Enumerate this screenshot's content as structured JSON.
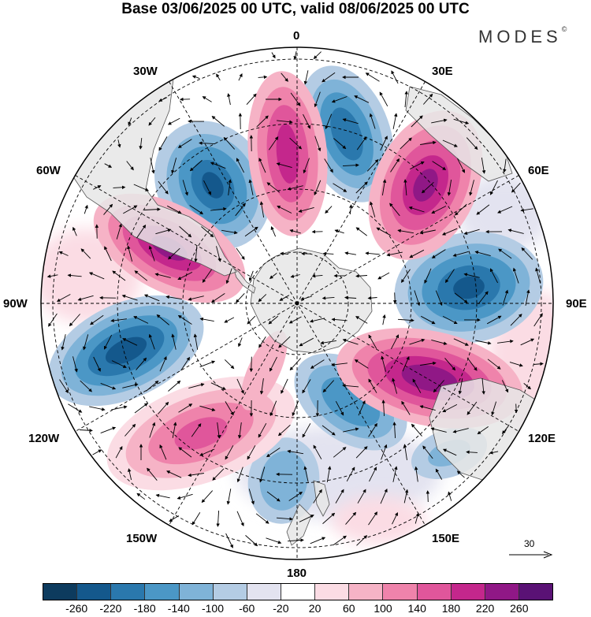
{
  "title": "Base 03/06/2025 00 UTC, valid 08/06/2025 00 UTC",
  "brand": {
    "name": "MODES",
    "mark": "©"
  },
  "longitude_labels": {
    "top": "0",
    "e30": "30E",
    "e60": "60E",
    "e90": "90E",
    "e120": "120E",
    "e150": "150E",
    "bottom": "180",
    "w150": "150W",
    "w120": "120W",
    "w90": "90W",
    "w60": "60W",
    "w30": "30W"
  },
  "reference_vector": {
    "value": "30"
  },
  "colorbar": {
    "ticks": [
      "-260",
      "-220",
      "-180",
      "-140",
      "-100",
      "-60",
      "-20",
      "20",
      "60",
      "100",
      "140",
      "180",
      "220",
      "260"
    ],
    "colors": [
      "#0d3b5e",
      "#14588c",
      "#2a78ad",
      "#4b97c6",
      "#7fb3d8",
      "#b4cce4",
      "#e3e3f0",
      "#ffffff",
      "#fbdce4",
      "#f6b3c6",
      "#ef83ab",
      "#e0569b",
      "#c4278c",
      "#901886",
      "#5a1275"
    ]
  },
  "map_style": {
    "land_color": "#e6e6e6",
    "coast_color": "#555555",
    "grid_color": "#000000"
  }
}
